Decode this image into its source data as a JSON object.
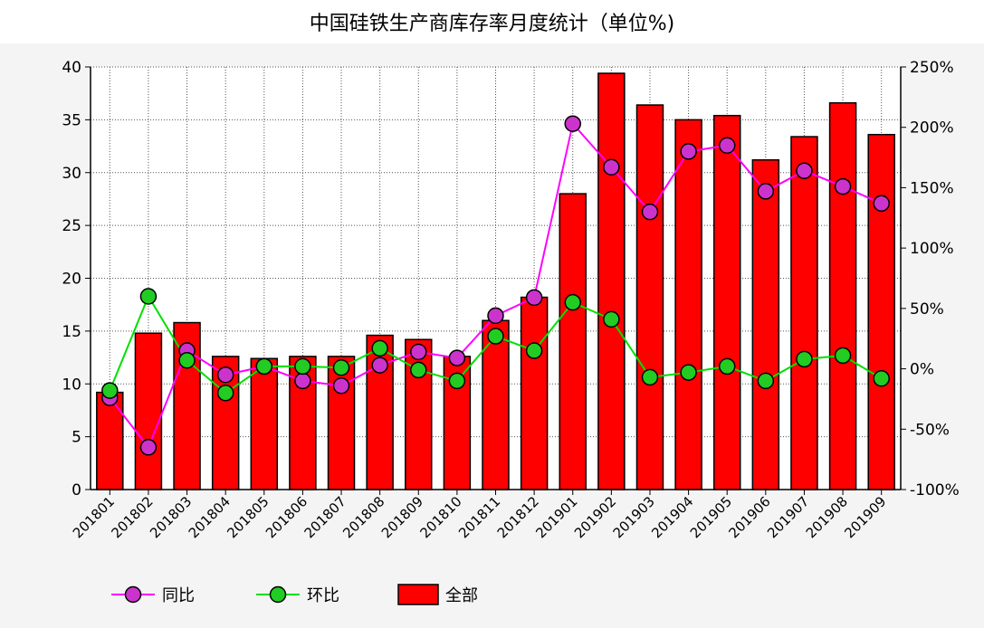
{
  "chart_data": {
    "type": "bar",
    "title": "中国硅铁生产商库存率月度统计（单位%)",
    "categories": [
      "201801",
      "201802",
      "201803",
      "201804",
      "201805",
      "201806",
      "201807",
      "201808",
      "201809",
      "201810",
      "201811",
      "201812",
      "201901",
      "201902",
      "201903",
      "201904",
      "201905",
      "201906",
      "201907",
      "201908",
      "201909"
    ],
    "series": [
      {
        "name": "全部",
        "kind": "bar",
        "axis": "left",
        "color": "#ff0000",
        "values": [
          9.2,
          14.8,
          15.8,
          12.6,
          12.4,
          12.6,
          12.6,
          14.6,
          14.2,
          12.6,
          16.0,
          18.2,
          28.0,
          39.4,
          36.4,
          35.0,
          35.4,
          31.2,
          33.4,
          36.6,
          33.6
        ]
      },
      {
        "name": "同比",
        "kind": "line",
        "axis": "right",
        "color": "#ff00ff",
        "marker_fill": "#cc33cc",
        "values": [
          -24,
          -65,
          15,
          -5,
          2,
          -10,
          -14,
          3,
          14,
          9,
          44,
          59,
          203,
          167,
          130,
          180,
          185,
          147,
          164,
          151,
          137
        ]
      },
      {
        "name": "环比",
        "kind": "line",
        "axis": "right",
        "color": "#00e000",
        "marker_fill": "#22cc22",
        "values": [
          -18,
          60,
          7,
          -20,
          2,
          2,
          1,
          17,
          -1,
          -10,
          27,
          15,
          55,
          41,
          -7,
          -3,
          2,
          -10,
          8,
          11,
          -8
        ]
      }
    ],
    "left_axis": {
      "min": 0,
      "max": 40,
      "step": 5,
      "tick_labels": [
        "0",
        "5",
        "10",
        "15",
        "20",
        "25",
        "30",
        "35",
        "40"
      ]
    },
    "right_axis": {
      "min": -100,
      "max": 250,
      "step": 50,
      "tick_labels": [
        "-100%",
        "-50%",
        "0%",
        "50%",
        "100%",
        "150%",
        "200%",
        "250%"
      ]
    },
    "grid": true,
    "legend_position": "bottom-left"
  },
  "legend": [
    {
      "label": "同比",
      "type": "line",
      "color": "#ff00ff",
      "marker": "#cc33cc"
    },
    {
      "label": "环比",
      "type": "line",
      "color": "#00e000",
      "marker": "#22cc22"
    },
    {
      "label": "全部",
      "type": "bar",
      "color": "#ff0000"
    }
  ]
}
